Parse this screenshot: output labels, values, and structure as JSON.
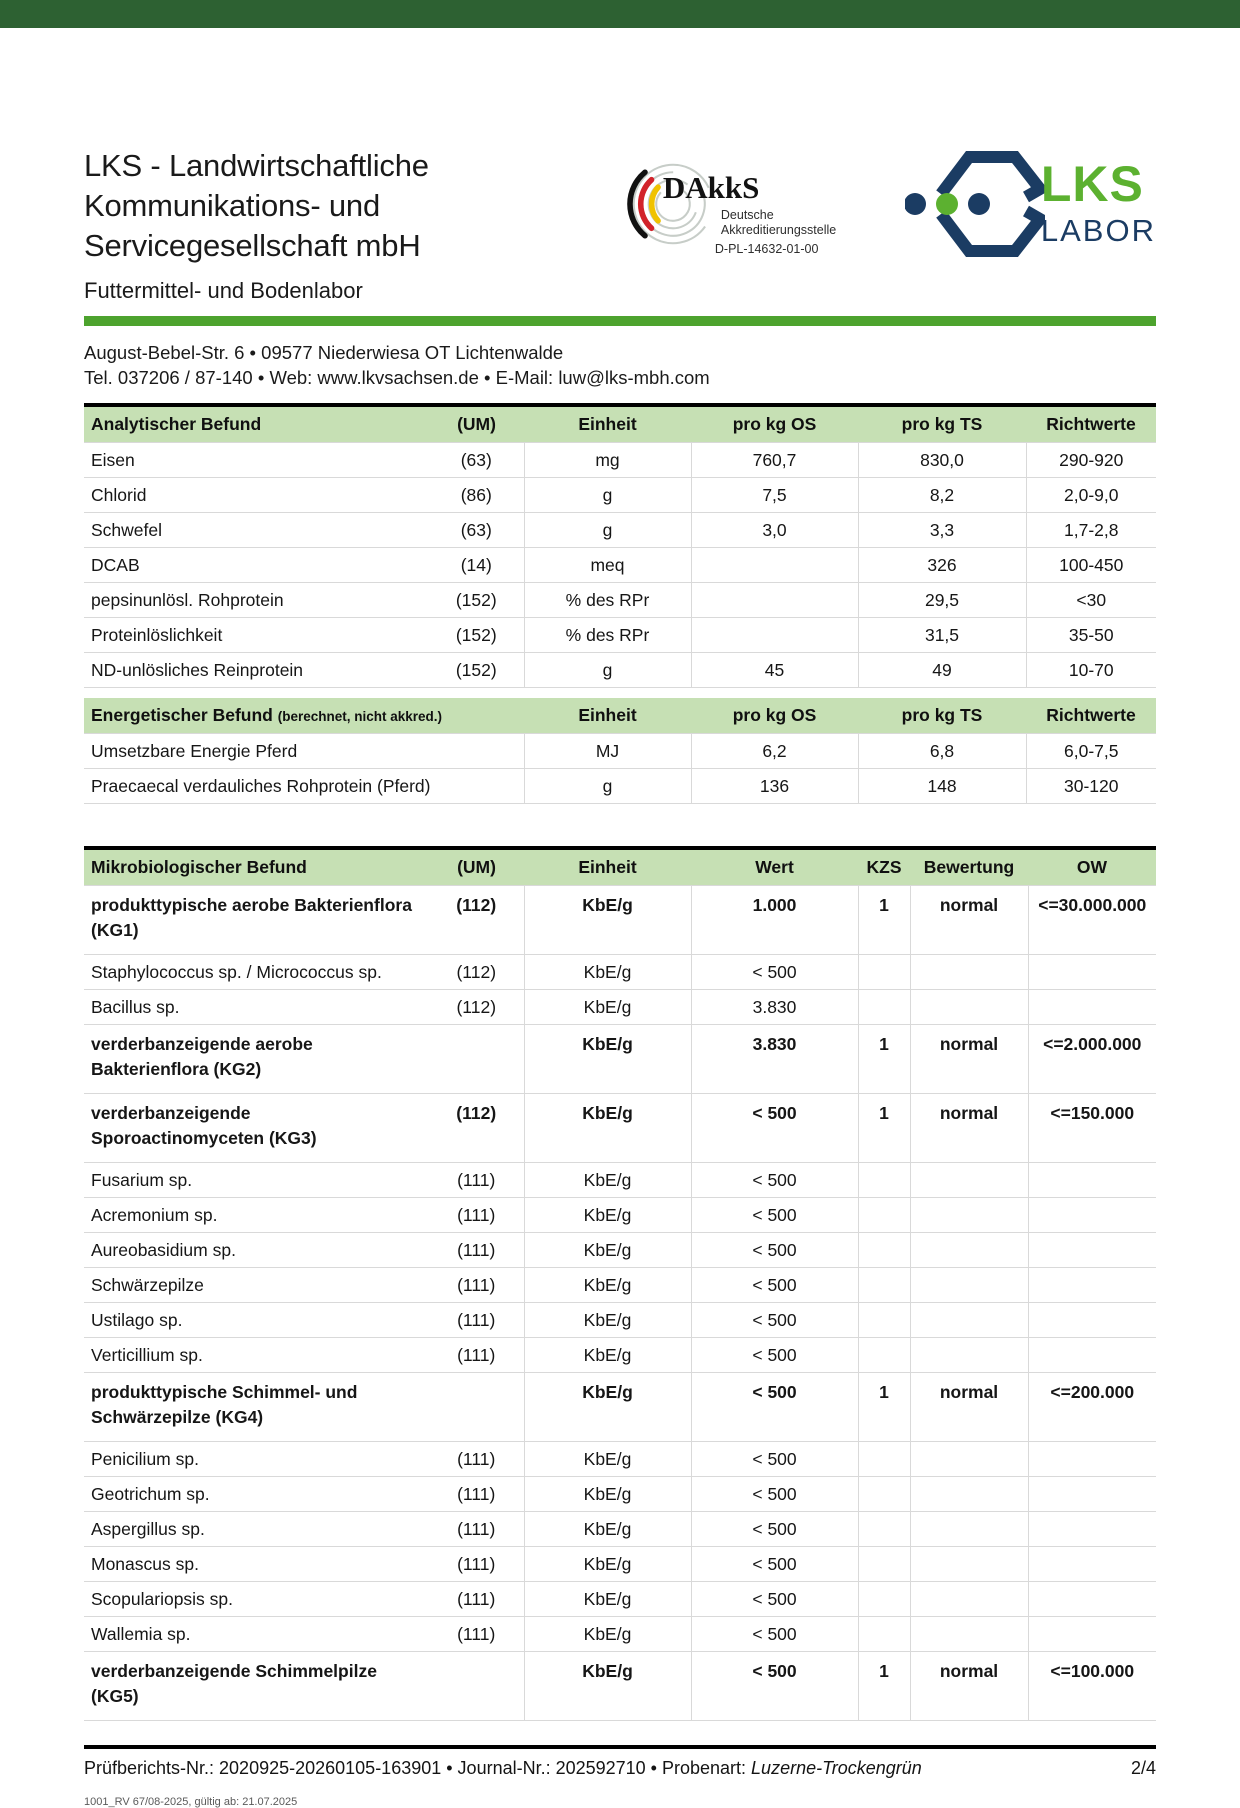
{
  "colors": {
    "top_banner": "#2d6132",
    "divider_green": "#4da32e",
    "table_header_green": "#c6e0b4",
    "lks_green": "#5cb130",
    "lks_navy": "#1b3c63",
    "dakks_red": "#d2232a",
    "dakks_gold": "#f0c200"
  },
  "header": {
    "company_line1": "LKS - Landwirtschaftliche Kommunikations- und",
    "company_line2": "Servicegesellschaft mbH",
    "department": "Futtermittel- und Bodenlabor",
    "address": "August-Bebel-Str. 6 • 09577 Niederwiesa OT Lichtenwalde",
    "contact": "Tel. 037206 / 87-140 • Web: www.lkvsachsen.de • E-Mail: luw@lks-mbh.com",
    "dakks": {
      "wordmark": "DAkkS",
      "sub_line1": "Deutsche",
      "sub_line2": "Akkreditierungsstelle",
      "accreditation_id": "D-PL-14632-01-00"
    },
    "lks_logo": {
      "main": "LKS",
      "sub": "LABOR"
    }
  },
  "analytical_table": {
    "headers": [
      "Analytischer Befund",
      "(UM)",
      "Einheit",
      "pro kg OS",
      "pro kg TS",
      "Richtwerte"
    ],
    "rows": [
      [
        "Eisen",
        "(63)",
        "mg",
        "760,7",
        "830,0",
        "290-920"
      ],
      [
        "Chlorid",
        "(86)",
        "g",
        "7,5",
        "8,2",
        "2,0-9,0"
      ],
      [
        "Schwefel",
        "(63)",
        "g",
        "3,0",
        "3,3",
        "1,7-2,8"
      ],
      [
        "DCAB",
        "(14)",
        "meq",
        "",
        "326",
        "100-450"
      ],
      [
        "pepsinunlösl. Rohprotein",
        "(152)",
        "% des RPr",
        "",
        "29,5",
        "<30"
      ],
      [
        "Proteinlöslichkeit",
        "(152)",
        "% des RPr",
        "",
        "31,5",
        "35-50"
      ],
      [
        "ND-unlösliches Reinprotein",
        "(152)",
        "g",
        "45",
        "49",
        "10-70"
      ]
    ]
  },
  "energetic_table": {
    "header_main": "Energetischer Befund",
    "header_note": "(berechnet, nicht akkred.)",
    "headers": [
      "Einheit",
      "pro kg OS",
      "pro kg TS",
      "Richtwerte"
    ],
    "rows": [
      [
        "Umsetzbare Energie Pferd",
        "MJ",
        "6,2",
        "6,8",
        "6,0-7,5"
      ],
      [
        "Praecaecal verdauliches Rohprotein (Pferd)",
        "g",
        "136",
        "148",
        "30-120"
      ]
    ]
  },
  "micro_table": {
    "headers": [
      "Mikrobiologischer Befund",
      "(UM)",
      "Einheit",
      "Wert",
      "KZS",
      "Bewertung",
      "OW"
    ],
    "bold_rows": [
      0,
      3,
      4,
      11,
      18
    ],
    "rows": [
      [
        "produkttypische aerobe Bakterienflora (KG1)",
        "(112)",
        "KbE/g",
        "1.000",
        "1",
        "normal",
        "<=30.000.000"
      ],
      [
        "Staphylococcus sp. / Micrococcus sp.",
        "(112)",
        "KbE/g",
        "< 500",
        "",
        "",
        ""
      ],
      [
        "Bacillus sp.",
        "(112)",
        "KbE/g",
        "3.830",
        "",
        "",
        ""
      ],
      [
        "verderbanzeigende aerobe Bakterienflora (KG2)",
        "",
        "KbE/g",
        "3.830",
        "1",
        "normal",
        "<=2.000.000"
      ],
      [
        "verderbanzeigende Sporoactinomyceten (KG3)",
        "(112)",
        "KbE/g",
        "< 500",
        "1",
        "normal",
        "<=150.000"
      ],
      [
        "Fusarium sp.",
        "(111)",
        "KbE/g",
        "< 500",
        "",
        "",
        ""
      ],
      [
        "Acremonium sp.",
        "(111)",
        "KbE/g",
        "< 500",
        "",
        "",
        ""
      ],
      [
        "Aureobasidium sp.",
        "(111)",
        "KbE/g",
        "< 500",
        "",
        "",
        ""
      ],
      [
        "Schwärzepilze",
        "(111)",
        "KbE/g",
        "< 500",
        "",
        "",
        ""
      ],
      [
        "Ustilago sp.",
        "(111)",
        "KbE/g",
        "< 500",
        "",
        "",
        ""
      ],
      [
        "Verticillium sp.",
        "(111)",
        "KbE/g",
        "< 500",
        "",
        "",
        ""
      ],
      [
        "produkttypische Schimmel- und Schwärzepilze (KG4)",
        "",
        "KbE/g",
        "< 500",
        "1",
        "normal",
        "<=200.000"
      ],
      [
        "Penicilium sp.",
        "(111)",
        "KbE/g",
        "< 500",
        "",
        "",
        ""
      ],
      [
        "Geotrichum sp.",
        "(111)",
        "KbE/g",
        "< 500",
        "",
        "",
        ""
      ],
      [
        "Aspergillus sp.",
        "(111)",
        "KbE/g",
        "< 500",
        "",
        "",
        ""
      ],
      [
        "Monascus sp.",
        "(111)",
        "KbE/g",
        "< 500",
        "",
        "",
        ""
      ],
      [
        "Scopulariopsis sp.",
        "(111)",
        "KbE/g",
        "< 500",
        "",
        "",
        ""
      ],
      [
        "Wallemia sp.",
        "(111)",
        "KbE/g",
        "< 500",
        "",
        "",
        ""
      ],
      [
        "verderbanzeigende Schimmelpilze (KG5)",
        "",
        "KbE/g",
        "< 500",
        "1",
        "normal",
        "<=100.000"
      ]
    ]
  },
  "footer": {
    "info_prefix": "Prüfberichts-Nr.: 2020925-20260105-163901 • Journal-Nr.: 202592710  • Probenart: ",
    "probenart_value": "Luzerne-Trockengrün",
    "page_number": "2/4",
    "form_note": "1001_RV 67/08-2025, gültig ab: 21.07.2025"
  }
}
